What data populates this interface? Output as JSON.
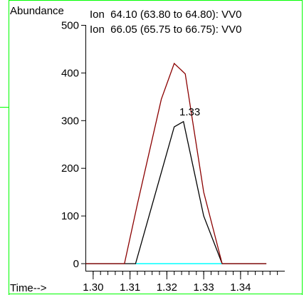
{
  "chart_data": {
    "type": "line",
    "ylabel": "Abundance",
    "xlabel": "Time-->",
    "xlim": [
      1.298,
      1.352
    ],
    "ylim": [
      0,
      500
    ],
    "x_ticks": [
      "1.30",
      "1.31",
      "1.32",
      "1.33",
      "1.34"
    ],
    "y_ticks": [
      "0",
      "100",
      "200",
      "300",
      "400",
      "500"
    ],
    "peak_label": "1.33",
    "series": [
      {
        "name": "Ion  64.10 (63.80 to 64.80): VV0",
        "color": "#000000",
        "x": [
          1.298,
          1.3115,
          1.322,
          1.3245,
          1.33,
          1.335,
          1.347
        ],
        "y": [
          0,
          0,
          287,
          298,
          100,
          0,
          0
        ]
      },
      {
        "name": "Ion  66.05 (65.75 to 66.75): VV0",
        "color": "#8b0000",
        "x": [
          1.298,
          1.3085,
          1.312,
          1.3185,
          1.322,
          1.325,
          1.33,
          1.335,
          1.347
        ],
        "y": [
          0,
          0,
          125,
          345,
          420,
          398,
          150,
          0,
          0
        ]
      }
    ],
    "baseline_color": "#00ffff"
  }
}
